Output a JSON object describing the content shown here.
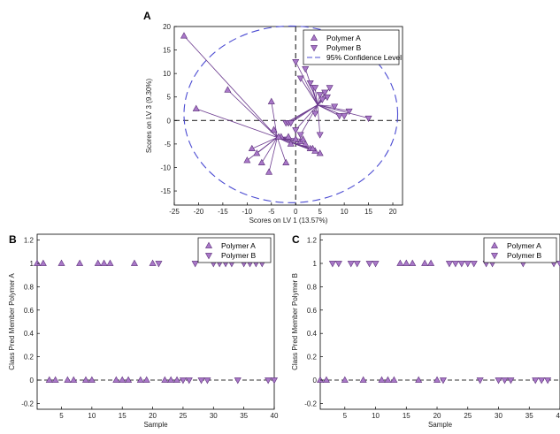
{
  "chart_data": [
    {
      "panel": "A",
      "type": "scatter",
      "title": "",
      "xlabel": "Scores on LV 1 (13.57%)",
      "ylabel": "Scores on LV 3 (9.30%)",
      "xlim": [
        -25,
        22
      ],
      "ylim": [
        -18,
        20
      ],
      "xticks": [
        -25,
        -20,
        -15,
        -10,
        -5,
        0,
        5,
        10,
        15,
        20
      ],
      "yticks": [
        -15,
        -10,
        -5,
        0,
        5,
        10,
        15,
        20
      ],
      "legend_position": "top-right",
      "legend": [
        "Polymer A",
        "Polymer B",
        "95% Confidence Level"
      ],
      "confidence_ellipse": {
        "label": "95% Confidence Level",
        "cx": -1,
        "cy": 1.3,
        "rx": 22,
        "ry": 18.8
      },
      "series": [
        {
          "name": "Polymer A",
          "marker": "triangle-up",
          "centroid": [
            -3.8,
            -3.6
          ],
          "x": [
            -23,
            -20.5,
            -14,
            -10,
            -9,
            -8,
            -7,
            -5.5,
            -5,
            -4.5,
            -3,
            -2,
            -1.5,
            -1,
            0,
            1,
            2,
            3,
            4,
            5,
            -3.5,
            1.5,
            3.5
          ],
          "y": [
            18,
            2.5,
            6.5,
            -8.5,
            -6,
            -7,
            -9,
            -11,
            4,
            -2,
            -3.5,
            -9,
            -3.5,
            -5,
            -4,
            -4.5,
            -5,
            -6,
            -6.5,
            -7,
            -3.5,
            -4,
            -6
          ]
        },
        {
          "name": "Polymer B",
          "marker": "triangle-down",
          "centroid": [
            4.5,
            3.3
          ],
          "x": [
            0,
            1,
            2,
            3,
            3.5,
            4,
            5,
            5.5,
            6,
            6.5,
            7,
            8,
            9,
            10,
            11,
            15,
            -2,
            -1.5,
            -1,
            0,
            1,
            5,
            4
          ],
          "y": [
            12.5,
            9,
            11,
            8,
            7,
            7,
            5.5,
            4.5,
            6,
            5,
            7,
            3,
            1,
            1,
            2,
            0.5,
            -0.5,
            -0.5,
            -0.5,
            -2,
            -3,
            -3,
            1.5
          ]
        }
      ]
    },
    {
      "panel": "B",
      "type": "scatter",
      "title": "",
      "xlabel": "Sample",
      "ylabel": "Class Pred Member Polymer A",
      "xlim": [
        1,
        40
      ],
      "ylim": [
        -0.25,
        1.25
      ],
      "xticks": [
        5,
        10,
        15,
        20,
        25,
        30,
        35,
        40
      ],
      "yticks": [
        -0.2,
        0,
        0.2,
        0.4,
        0.6,
        0.8,
        1,
        1.2
      ],
      "legend_position": "top-right",
      "legend": [
        "Polymer A",
        "Polymer B"
      ],
      "threshold": 0,
      "series": [
        {
          "name": "Polymer A",
          "marker": "triangle-up",
          "x": [
            1,
            2,
            5,
            8,
            11,
            12,
            13,
            17,
            20,
            3,
            4,
            6,
            7,
            9,
            10,
            14,
            15,
            16,
            18,
            19,
            22,
            23,
            24
          ],
          "y": [
            1,
            1,
            1,
            1,
            1,
            1,
            1,
            1,
            1,
            0,
            0,
            0,
            0,
            0,
            0,
            0,
            0,
            0,
            0,
            0,
            0,
            0,
            0
          ]
        },
        {
          "name": "Polymer B",
          "marker": "triangle-down",
          "x": [
            21,
            27,
            30,
            31,
            32,
            33,
            35,
            36,
            37,
            38,
            25,
            26,
            28,
            29,
            34,
            39,
            40
          ],
          "y": [
            1,
            1,
            1,
            1,
            1,
            1,
            1,
            1,
            1,
            1,
            0,
            0,
            0,
            0,
            0,
            0,
            0
          ]
        }
      ]
    },
    {
      "panel": "C",
      "type": "scatter",
      "title": "",
      "xlabel": "Sample",
      "ylabel": "Class Pred Member Polymer B",
      "xlim": [
        1,
        40
      ],
      "ylim": [
        -0.25,
        1.25
      ],
      "xticks": [
        5,
        10,
        15,
        20,
        25,
        30,
        35,
        40
      ],
      "yticks": [
        -0.2,
        0,
        0.2,
        0.4,
        0.6,
        0.8,
        1,
        1.2
      ],
      "legend_position": "top-right",
      "legend": [
        "Polymer A",
        "Polymer B"
      ],
      "threshold": 0,
      "series": [
        {
          "name": "Polymer A",
          "marker": "triangle-up",
          "x": [
            14,
            15,
            16,
            18,
            19,
            1,
            2,
            5,
            8,
            11,
            12,
            13,
            17,
            20
          ],
          "y": [
            1,
            1,
            1,
            1,
            1,
            0,
            0,
            0,
            0,
            0,
            0,
            0,
            0,
            0
          ]
        },
        {
          "name": "Polymer B",
          "marker": "triangle-down",
          "x": [
            3,
            4,
            6,
            7,
            9,
            10,
            22,
            23,
            24,
            25,
            26,
            28,
            29,
            34,
            39,
            40,
            21,
            27,
            30,
            31,
            32,
            36,
            37,
            38
          ],
          "y": [
            1,
            1,
            1,
            1,
            1,
            1,
            1,
            1,
            1,
            1,
            1,
            1,
            1,
            1,
            1,
            1,
            0,
            0,
            0,
            0,
            0,
            0,
            0,
            0
          ]
        }
      ]
    }
  ],
  "colors": {
    "marker_fill": "#a978c8",
    "marker_stroke": "#5a2d78",
    "line": "#6b3a8e",
    "ellipse": "#4b4bd2",
    "zero_line": "#333333"
  }
}
